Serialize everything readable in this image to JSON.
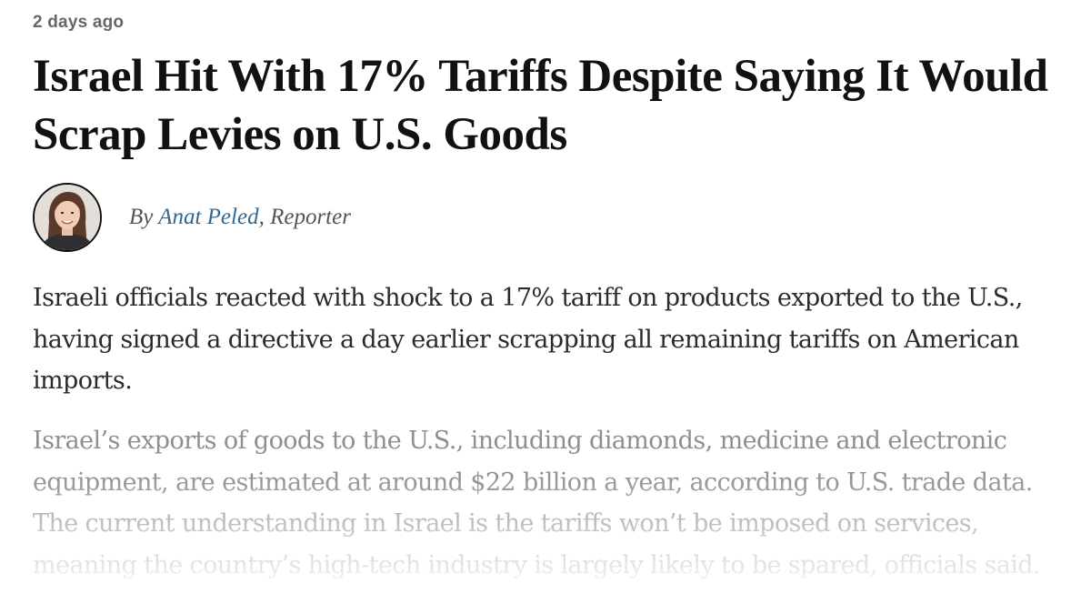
{
  "article": {
    "timestamp": "2 days ago",
    "headline": "Israel Hit With 17% Tariffs Despite Saying It Would Scrap Levies on U.S. Goods",
    "byline": {
      "prefix": "By",
      "author": "Anat Peled",
      "separator": ",",
      "role": "Reporter"
    },
    "lead": "Israeli officials reacted with shock to a 17% tariff on products exported to the U.S., having signed a directive a day earlier scrapping all remaining tariffs on American imports.",
    "body": "Israel’s exports of goods to the U.S., including diamonds, medicine and electronic equipment, are estimated at around $22 billion a year, according to U.S. trade data. The current understanding in Israel is the tariffs won’t be imposed on services, meaning the country’s high-tech industry is largely likely to be spared, officials said."
  },
  "colors": {
    "headline": "#111111",
    "author_link": "#326891",
    "byline_text": "#555555",
    "lead_text": "#2b2b2b",
    "faded_text": "#8f8f8f"
  }
}
